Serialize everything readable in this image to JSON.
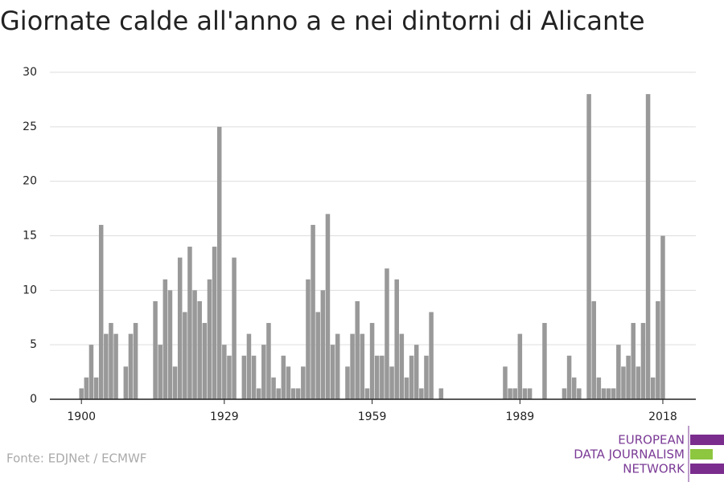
{
  "chart_data": {
    "type": "bar",
    "title": "Giornate calde all'anno a e nei dintorni di Alicante",
    "source": "Fonte: EDJNet / ECMWF",
    "logo": [
      "EUROPEAN",
      "DATA JOURNALISM",
      "NETWORK"
    ],
    "x": [
      1900,
      1901,
      1902,
      1903,
      1904,
      1905,
      1906,
      1907,
      1908,
      1909,
      1910,
      1911,
      1912,
      1913,
      1914,
      1915,
      1916,
      1917,
      1918,
      1919,
      1920,
      1921,
      1922,
      1923,
      1924,
      1925,
      1926,
      1927,
      1928,
      1929,
      1930,
      1931,
      1932,
      1933,
      1934,
      1935,
      1936,
      1937,
      1938,
      1939,
      1940,
      1941,
      1942,
      1943,
      1944,
      1945,
      1946,
      1947,
      1948,
      1949,
      1950,
      1951,
      1952,
      1953,
      1954,
      1955,
      1956,
      1957,
      1958,
      1959,
      1960,
      1961,
      1962,
      1963,
      1964,
      1965,
      1966,
      1967,
      1968,
      1969,
      1970,
      1971,
      1972,
      1973,
      1974,
      1975,
      1976,
      1977,
      1978,
      1979,
      1980,
      1981,
      1982,
      1983,
      1984,
      1985,
      1986,
      1987,
      1988,
      1989,
      1990,
      1991,
      1992,
      1993,
      1994,
      1995,
      1996,
      1997,
      1998,
      1999,
      2000,
      2001,
      2002,
      2003,
      2004,
      2005,
      2006,
      2007,
      2008,
      2009,
      2010,
      2011,
      2012,
      2013,
      2014,
      2015,
      2016,
      2017,
      2018
    ],
    "values": [
      1,
      2,
      5,
      2,
      16,
      6,
      7,
      6,
      0,
      3,
      6,
      7,
      0,
      0,
      0,
      9,
      5,
      11,
      10,
      3,
      13,
      8,
      14,
      10,
      9,
      7,
      11,
      14,
      25,
      5,
      4,
      13,
      0,
      4,
      6,
      4,
      1,
      5,
      7,
      2,
      1,
      4,
      3,
      1,
      1,
      3,
      11,
      16,
      8,
      10,
      17,
      5,
      6,
      0,
      3,
      6,
      9,
      6,
      1,
      7,
      4,
      4,
      12,
      3,
      11,
      6,
      2,
      4,
      5,
      1,
      4,
      8,
      0,
      1,
      0,
      0,
      0,
      0,
      0,
      0,
      0,
      0,
      0,
      0,
      0,
      0,
      3,
      1,
      1,
      6,
      1,
      1,
      0,
      0,
      7,
      0,
      0,
      0,
      1,
      4,
      2,
      1,
      0,
      28,
      9,
      2,
      1,
      1,
      1,
      5,
      3,
      4,
      7,
      3,
      7,
      28,
      2,
      9,
      15
    ],
    "color": "#999999",
    "xlim": [
      1893.6,
      2024.7
    ],
    "xticks": [
      1900,
      1929,
      1959,
      1989,
      2018
    ],
    "ylim": [
      0,
      30
    ],
    "yticks": [
      0,
      5,
      10,
      15,
      20,
      25,
      30
    ],
    "grid": true
  }
}
